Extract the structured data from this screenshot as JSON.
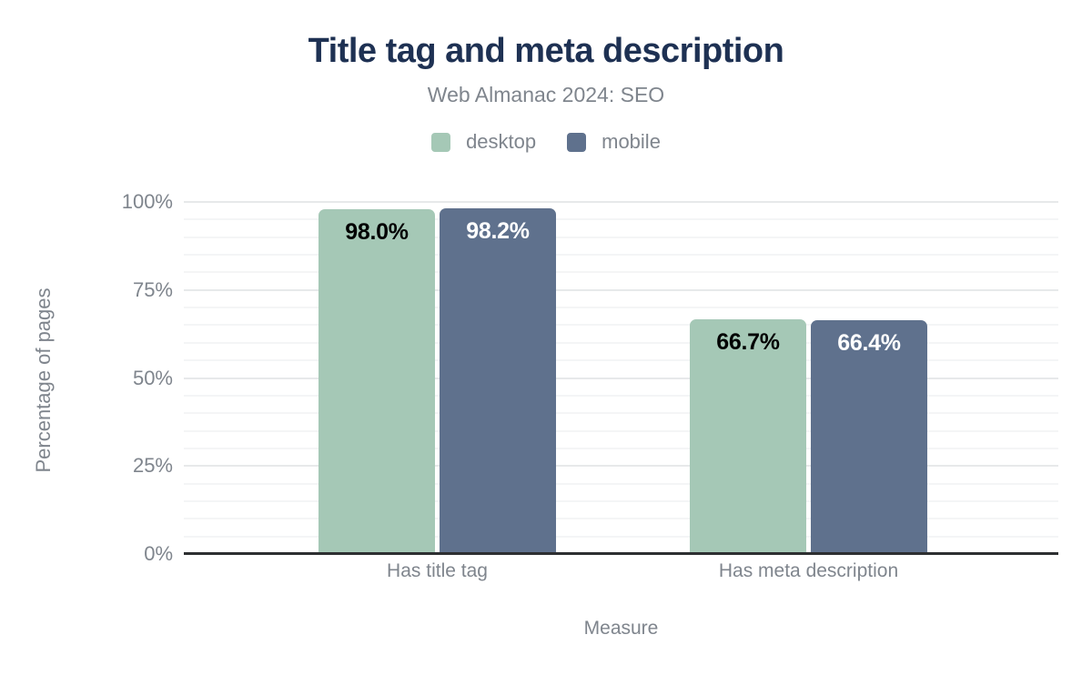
{
  "chart_data": {
    "type": "bar",
    "title": "Title tag and meta description",
    "subtitle": "Web Almanac 2024: SEO",
    "xlabel": "Measure",
    "ylabel": "Percentage of pages",
    "categories": [
      "Has title tag",
      "Has meta description"
    ],
    "series": [
      {
        "name": "desktop",
        "values": [
          98.0,
          66.7
        ],
        "labels": [
          "98.0%",
          "66.7%"
        ],
        "color": "#a5c8b6",
        "label_color": "#000000"
      },
      {
        "name": "mobile",
        "values": [
          98.2,
          66.4
        ],
        "labels": [
          "98.2%",
          "66.4%"
        ],
        "color": "#5f718d",
        "label_color": "#ffffff"
      }
    ],
    "ylim": [
      0,
      100
    ],
    "y_ticks": [
      0,
      25,
      50,
      75,
      100
    ],
    "y_tick_labels": [
      "0%",
      "25%",
      "50%",
      "75%",
      "100%"
    ],
    "y_minor_step": 5,
    "grid": "horizontal",
    "legend_position": "top"
  },
  "theme": {
    "background": "#ffffff",
    "title_color": "#1e3153",
    "text_muted": "#7f858d",
    "axis_line_color": "#2d2f31",
    "grid_major_color": "#e7e9ea",
    "grid_minor_color": "#f4f5f6"
  }
}
